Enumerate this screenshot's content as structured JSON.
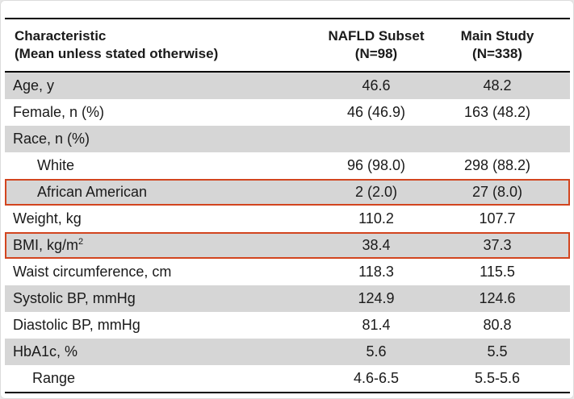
{
  "header": {
    "characteristic_line1": "Characteristic",
    "characteristic_line2": "(Mean unless stated otherwise)",
    "col1_line1": "NAFLD Subset",
    "col1_line2": "(N=98)",
    "col2_line1": "Main Study",
    "col2_line2": "(N=338)"
  },
  "rows": [
    {
      "label": "Age, y",
      "nafld": "46.6",
      "main": "48.2"
    },
    {
      "label": "Female, n (%)",
      "nafld": "46 (46.9)",
      "main": "163 (48.2)"
    },
    {
      "label": "Race, n (%)",
      "nafld": "",
      "main": ""
    },
    {
      "label": "White",
      "nafld": "96 (98.0)",
      "main": "298 (88.2)"
    },
    {
      "label": "African American",
      "nafld": "2 (2.0)",
      "main": "27 (8.0)"
    },
    {
      "label": "Weight, kg",
      "nafld": "110.2",
      "main": "107.7"
    },
    {
      "label": "BMI, kg/m",
      "label_sup": "2",
      "nafld": "38.4",
      "main": "37.3"
    },
    {
      "label": "Waist circumference, cm",
      "nafld": "118.3",
      "main": "115.5"
    },
    {
      "label": "Systolic BP, mmHg",
      "nafld": "124.9",
      "main": "124.6"
    },
    {
      "label": "Diastolic BP, mmHg",
      "nafld": "81.4",
      "main": "80.8"
    },
    {
      "label": "HbA1c, %",
      "nafld": "5.6",
      "main": "5.5"
    },
    {
      "label": "Range",
      "nafld": "4.6-6.5",
      "main": "5.5-5.6"
    }
  ],
  "highlight_color": "#d2451f",
  "shade_color": "#d6d6d6"
}
